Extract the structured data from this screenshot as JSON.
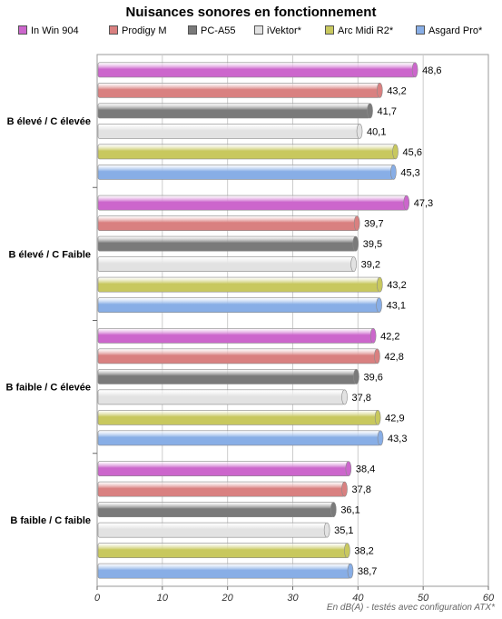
{
  "chart_data": {
    "type": "bar",
    "orientation": "horizontal",
    "title": "Nuisances sonores en fonctionnement",
    "categories": [
      "B élevé / C élevée",
      "B élevé / C Faible",
      "B faible / C élevée",
      "B faible / C faible"
    ],
    "series": [
      {
        "name": "In Win 904",
        "color": "#cc66cc",
        "values": [
          48.6,
          47.3,
          42.2,
          38.4
        ],
        "labels": [
          "48,6",
          "47,3",
          "42,2",
          "38,4"
        ]
      },
      {
        "name": "Prodigy M",
        "color": "#d98080",
        "values": [
          43.2,
          39.7,
          42.8,
          37.8
        ],
        "labels": [
          "43,2",
          "39,7",
          "42,8",
          "37,8"
        ]
      },
      {
        "name": "PC-A55",
        "color": "#7a7a7a",
        "values": [
          41.7,
          39.5,
          39.6,
          36.1
        ],
        "labels": [
          "41,7",
          "39,5",
          "39,6",
          "36,1"
        ]
      },
      {
        "name": "iVektor*",
        "color": "#e2e2e2",
        "values": [
          40.1,
          39.2,
          37.8,
          35.1
        ],
        "labels": [
          "40,1",
          "39,2",
          "37,8",
          "35,1"
        ]
      },
      {
        "name": "Arc Midi R2*",
        "color": "#c8c85e",
        "values": [
          45.6,
          43.2,
          42.9,
          38.2
        ],
        "labels": [
          "45,6",
          "43,2",
          "42,9",
          "38,2"
        ]
      },
      {
        "name": "Asgard Pro*",
        "color": "#88aee6",
        "values": [
          45.3,
          43.1,
          43.3,
          38.7
        ],
        "labels": [
          "45,3",
          "43,1",
          "43,3",
          "38,7"
        ]
      }
    ],
    "xlim": [
      0,
      60
    ],
    "ticks": [
      "0",
      "10",
      "20",
      "30",
      "40",
      "50",
      "60"
    ],
    "grid": true,
    "legend_position": "top",
    "footer": "En dB(A) - testés avec configuration ATX*"
  }
}
